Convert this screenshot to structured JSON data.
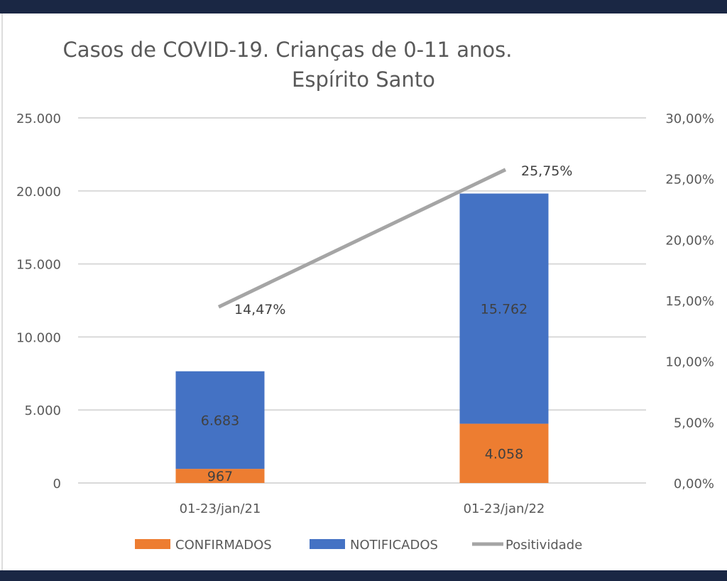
{
  "chart_data": {
    "type": "bar",
    "stacked": true,
    "title": "Casos de COVID-19. Crianças de 0-11 anos.",
    "subtitle": "Espírito  Santo",
    "categories": [
      "01-23/jan/21",
      "01-23/jan/22"
    ],
    "series": [
      {
        "name": "CONFIRMADOS",
        "type": "bar",
        "axis": "left",
        "color": "#ed7d31",
        "values": [
          967,
          4058
        ],
        "labels": [
          "967",
          "4.058"
        ]
      },
      {
        "name": "NOTIFICADOS",
        "type": "bar",
        "axis": "left",
        "color": "#4472c4",
        "values": [
          6683,
          15762
        ],
        "labels": [
          "6.683",
          "15.762"
        ]
      },
      {
        "name": "Positividade",
        "type": "line",
        "axis": "right",
        "color": "#a5a5a5",
        "values": [
          14.47,
          25.75
        ],
        "labels": [
          "14,47%",
          "25,75%"
        ]
      }
    ],
    "y_left": {
      "range": [
        0,
        25000
      ],
      "ticks": [
        0,
        5000,
        10000,
        15000,
        20000,
        25000
      ],
      "tick_labels": [
        "0",
        "5.000",
        "10.000",
        "15.000",
        "20.000",
        "25.000"
      ]
    },
    "y_right": {
      "range": [
        0,
        30
      ],
      "ticks": [
        0,
        5,
        10,
        15,
        20,
        25,
        30
      ],
      "tick_labels": [
        "0,00%",
        "5,00%",
        "10,00%",
        "15,00%",
        "20,00%",
        "25,00%",
        "30,00%"
      ]
    },
    "grid": true,
    "legend": "bottom"
  }
}
